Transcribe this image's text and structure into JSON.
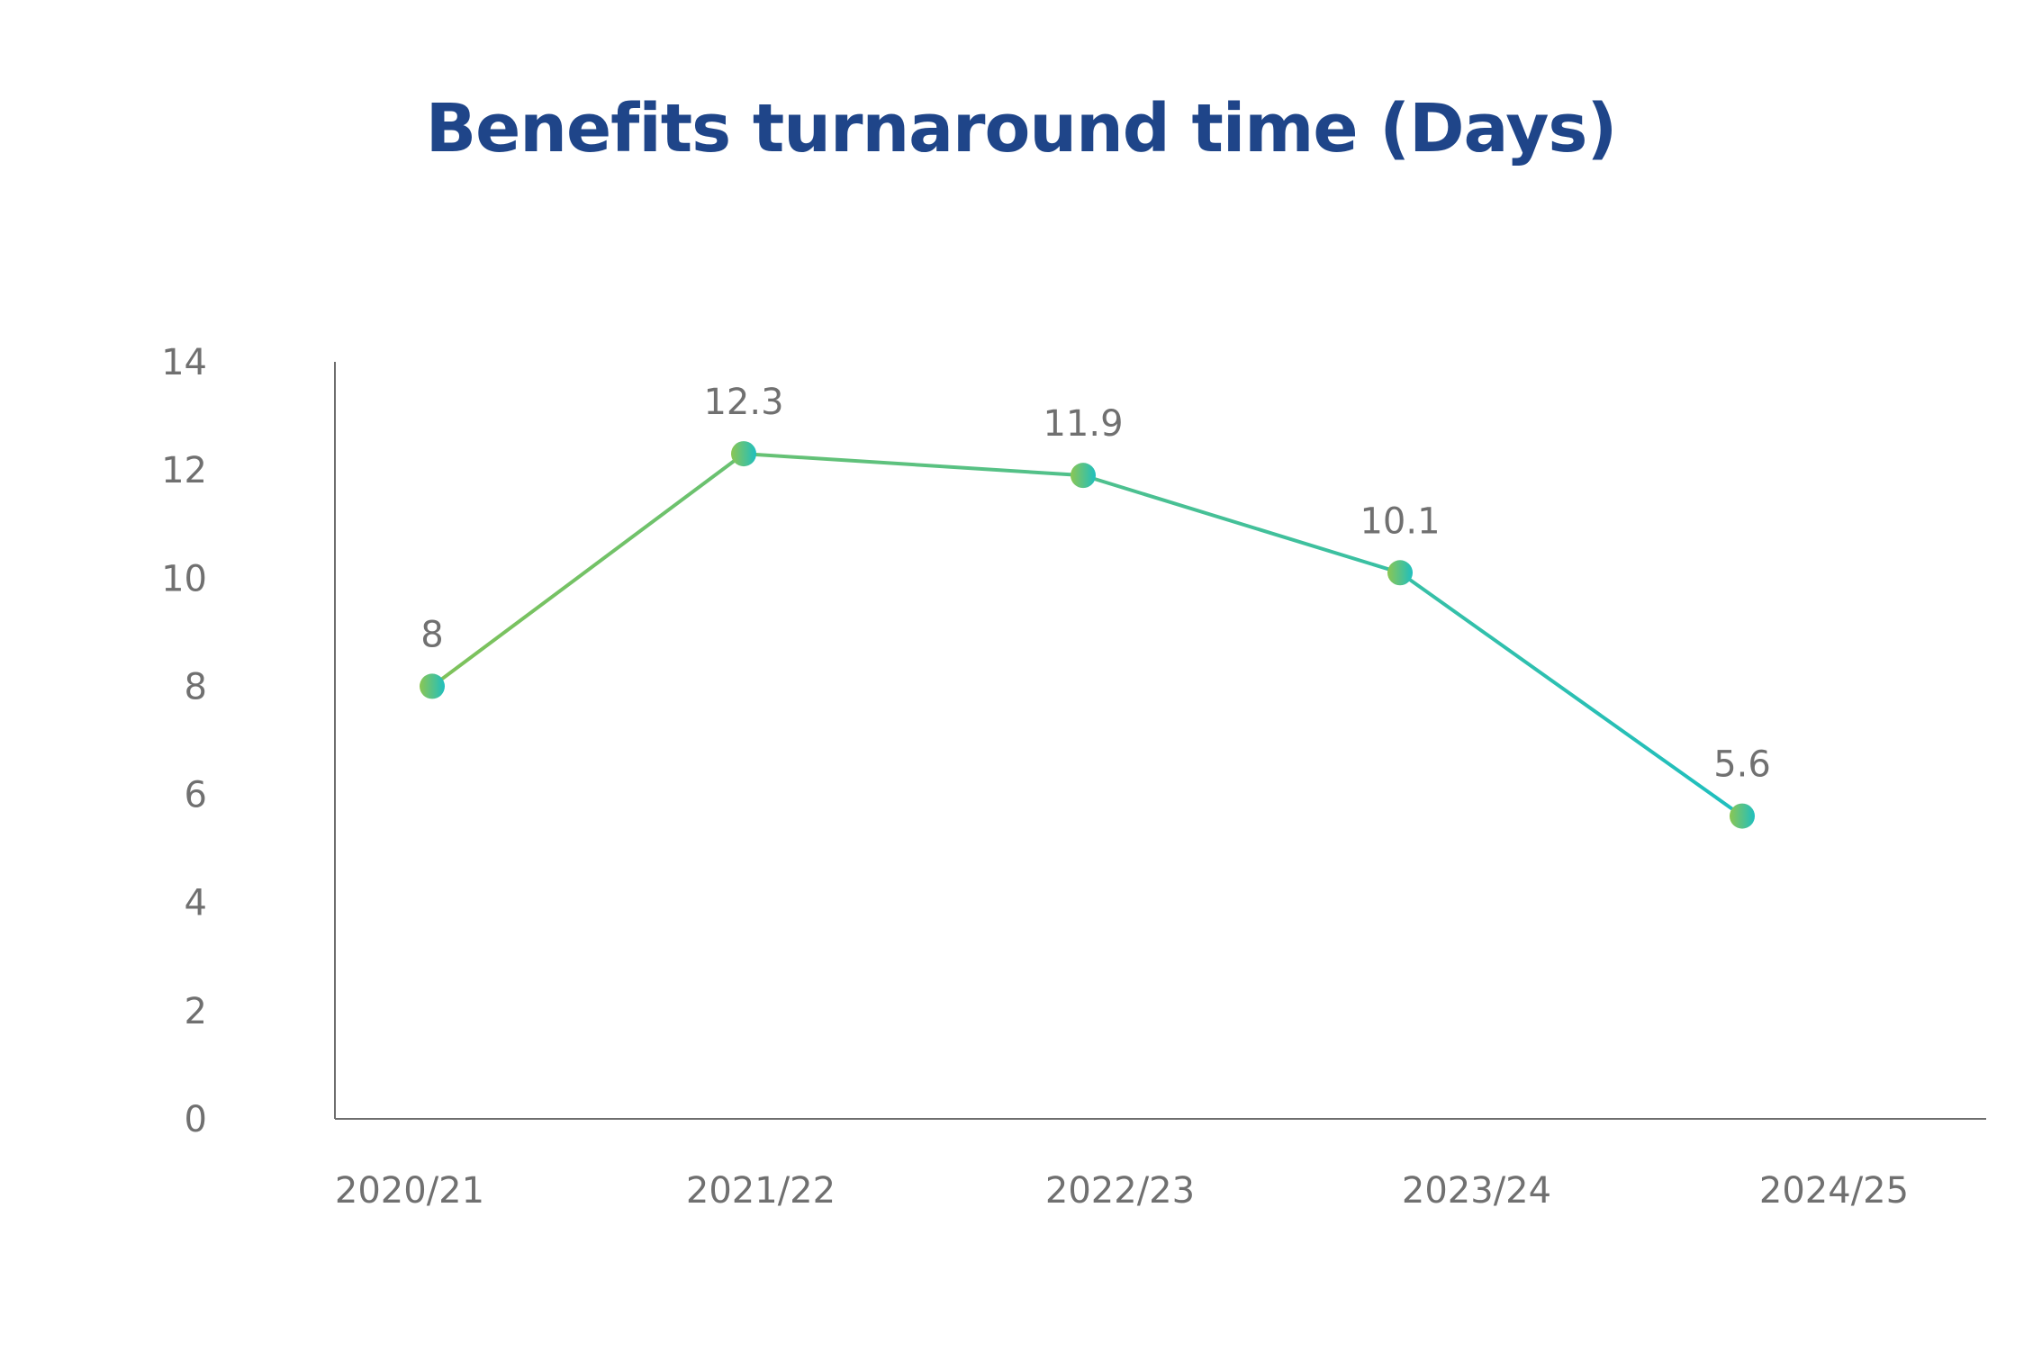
{
  "colors": {
    "title": "#1f4589",
    "text": "#707070",
    "axis": "#6e6e6e",
    "line_start": "#7fc25a",
    "line_end": "#1fbfbf"
  },
  "chart_data": {
    "type": "line",
    "title": "Benefits turnaround time (Days)",
    "xlabel": "",
    "ylabel": "",
    "categories": [
      "2020/21",
      "2021/22",
      "2022/23",
      "2023/24",
      "2024/25"
    ],
    "series": [
      {
        "values": [
          8,
          12.3,
          11.9,
          10.1,
          5.6
        ],
        "labels": [
          "8",
          "12.3",
          "11.9",
          "10.1",
          "5.6"
        ]
      }
    ],
    "ylim": [
      0,
      14
    ],
    "yticks": [
      0,
      2,
      4,
      6,
      8,
      10,
      12,
      14
    ],
    "ytick_labels": [
      "0",
      "2",
      "4",
      "6",
      "8",
      "10",
      "12",
      "14"
    ],
    "grid": false,
    "legend": "none"
  }
}
